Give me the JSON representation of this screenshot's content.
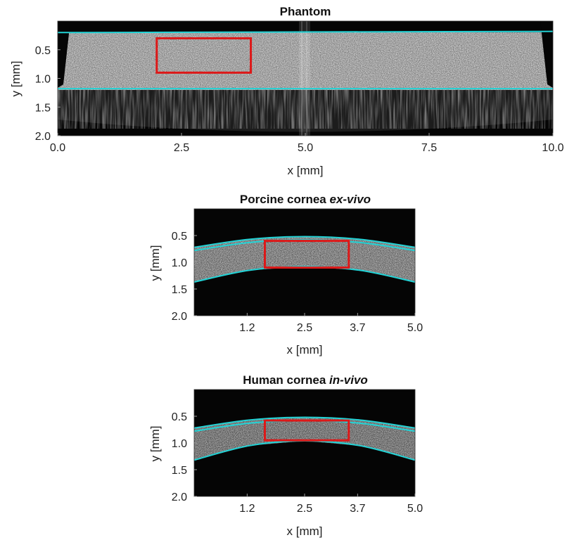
{
  "panels": [
    {
      "id": "phantom",
      "title": "Phantom",
      "title_italic": "",
      "xlabel": "x [mm]",
      "ylabel": "y [mm]",
      "x_ticks": [
        "0.0",
        "2.5",
        "5.0",
        "7.5",
        "10.0"
      ],
      "y_ticks": [
        "0.5",
        "1.0",
        "1.5",
        "2.0"
      ],
      "xlim": [
        0,
        10
      ],
      "ylim": [
        0,
        2
      ],
      "x_tick_values": [
        0,
        2.5,
        5,
        7.5,
        10
      ],
      "y_tick_values": [
        0.5,
        1.0,
        1.5,
        2.0
      ],
      "roi_rect": {
        "x0": 2.0,
        "x1": 3.9,
        "y0": 0.3,
        "y1": 0.9
      },
      "boundaries": [
        {
          "x": [
            0,
            10
          ],
          "y": [
            0.2,
            0.18
          ]
        },
        {
          "x": [
            0,
            10
          ],
          "y": [
            1.18,
            1.18
          ]
        }
      ]
    },
    {
      "id": "porcine",
      "title": "Porcine cornea",
      "title_italic": "ex-vivo",
      "xlabel": "x [mm]",
      "ylabel": "y [mm]",
      "x_ticks": [
        "1.2",
        "2.5",
        "3.7",
        "5.0"
      ],
      "y_ticks": [
        "0.5",
        "1.0",
        "1.5",
        "2.0"
      ],
      "xlim": [
        0,
        5
      ],
      "ylim": [
        0,
        2
      ],
      "x_tick_values": [
        1.2,
        2.5,
        3.7,
        5.0
      ],
      "y_tick_values": [
        0.5,
        1.0,
        1.5,
        2.0
      ],
      "roi_rect": {
        "x0": 1.6,
        "x1": 3.5,
        "y0": 0.6,
        "y1": 1.1
      },
      "boundaries": [
        {
          "x": [
            0,
            1.25,
            2.5,
            3.75,
            5
          ],
          "y": [
            0.72,
            0.57,
            0.52,
            0.57,
            0.72
          ]
        },
        {
          "x": [
            0,
            1.25,
            2.5,
            3.75,
            5
          ],
          "y": [
            0.78,
            0.63,
            0.58,
            0.63,
            0.78
          ]
        },
        {
          "x": [
            0,
            1.25,
            2.5,
            3.75,
            5
          ],
          "y": [
            1.37,
            1.15,
            1.08,
            1.15,
            1.37
          ]
        }
      ]
    },
    {
      "id": "human",
      "title": "Human cornea",
      "title_italic": "in-vivo",
      "xlabel": "x [mm]",
      "ylabel": "y [mm]",
      "x_ticks": [
        "1.2",
        "2.5",
        "3.7",
        "5.0"
      ],
      "y_ticks": [
        "0.5",
        "1.0",
        "1.5",
        "2.0"
      ],
      "xlim": [
        0,
        5
      ],
      "ylim": [
        0,
        2
      ],
      "x_tick_values": [
        1.2,
        2.5,
        3.7,
        5.0
      ],
      "y_tick_values": [
        0.5,
        1.0,
        1.5,
        2.0
      ],
      "roi_rect": {
        "x0": 1.6,
        "x1": 3.5,
        "y0": 0.58,
        "y1": 0.95
      },
      "boundaries": [
        {
          "x": [
            0,
            1.25,
            2.5,
            3.75,
            5
          ],
          "y": [
            0.72,
            0.57,
            0.52,
            0.57,
            0.72
          ]
        },
        {
          "x": [
            0,
            1.25,
            2.5,
            3.75,
            5
          ],
          "y": [
            0.78,
            0.63,
            0.58,
            0.63,
            0.78
          ]
        },
        {
          "x": [
            0,
            1.25,
            2.5,
            3.75,
            5
          ],
          "y": [
            1.32,
            1.05,
            0.96,
            1.05,
            1.32
          ]
        }
      ]
    }
  ],
  "colors": {
    "boundary": "#22d3d6",
    "roi": "#dd1818",
    "background": "#050505",
    "tissue": "#8a8a8a"
  }
}
